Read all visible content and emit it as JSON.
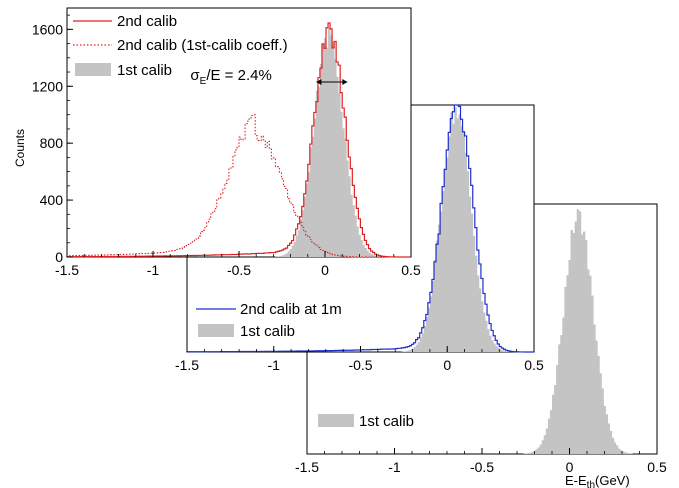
{
  "chart_data": [
    {
      "type": "histogram",
      "panel": "back",
      "xlabel": "E-E",
      "xlabel_sub": "th",
      "xlabel_unit": "(GeV)",
      "xlim": [
        -1.5,
        0.5
      ],
      "x_ticks": [
        "-1.5",
        "-1",
        "-0.5",
        "0",
        "0.5"
      ],
      "ylabel": "",
      "y_ticks": [],
      "legend_placement": "bottom-left",
      "series": [
        {
          "name": "1st calib",
          "style": "filled",
          "color": "#c4c4c4",
          "mean": 0.05,
          "sigma": 0.085,
          "peak_fraction": 0.95,
          "tail": 0.0
        }
      ]
    },
    {
      "type": "histogram",
      "panel": "middle",
      "xlabel": "",
      "xlim": [
        -1.5,
        0.5
      ],
      "x_ticks": [
        "-1.5",
        "-1",
        "-0.5",
        "0",
        "0.5"
      ],
      "ylabel": "",
      "y_ticks": [],
      "legend_placement": "bottom-left",
      "series": [
        {
          "name": "2nd calib at 1m",
          "style": "step",
          "color": "#1f2fd0",
          "mean": 0.06,
          "sigma": 0.09,
          "peak_fraction": 0.97,
          "tail": 0.03
        },
        {
          "name": "1st calib",
          "style": "filled",
          "color": "#c4c4c4",
          "mean": 0.05,
          "sigma": 0.085,
          "peak_fraction": 0.98,
          "tail": 0.0
        }
      ]
    },
    {
      "type": "histogram",
      "panel": "front",
      "xlabel": "",
      "xlim": [
        -1.5,
        0.5
      ],
      "x_ticks": [
        "-1.5",
        "-1",
        "-0.5",
        "0",
        "0.5"
      ],
      "ylabel": "Counts",
      "ylim": [
        0,
        1750
      ],
      "y_ticks": [
        "0",
        "400",
        "800",
        "1200",
        "1600"
      ],
      "y_tick_values": [
        0,
        400,
        800,
        1200,
        1600
      ],
      "legend_placement": "top-left",
      "annotation": {
        "sigma": "σ",
        "sub": "E",
        "text": "/E = 2.4%",
        "x_from": -0.05,
        "x_to": 0.13,
        "y": 1230
      },
      "series": [
        {
          "name": "2nd calib",
          "style": "step",
          "color": "#e02020",
          "mean": 0.03,
          "sigma": 0.09,
          "peak": 1560,
          "tail": 0.04
        },
        {
          "name": "2nd calib (1st-calib coeff.)",
          "style": "dotted",
          "color": "#e02020",
          "mean": -0.4,
          "sigma": 0.16,
          "peak": 860,
          "tail": 0.12
        },
        {
          "name": "1st calib",
          "style": "filled",
          "color": "#c4c4c4",
          "mean": 0.02,
          "sigma": 0.085,
          "peak": 1540,
          "tail": 0.0
        }
      ]
    }
  ]
}
